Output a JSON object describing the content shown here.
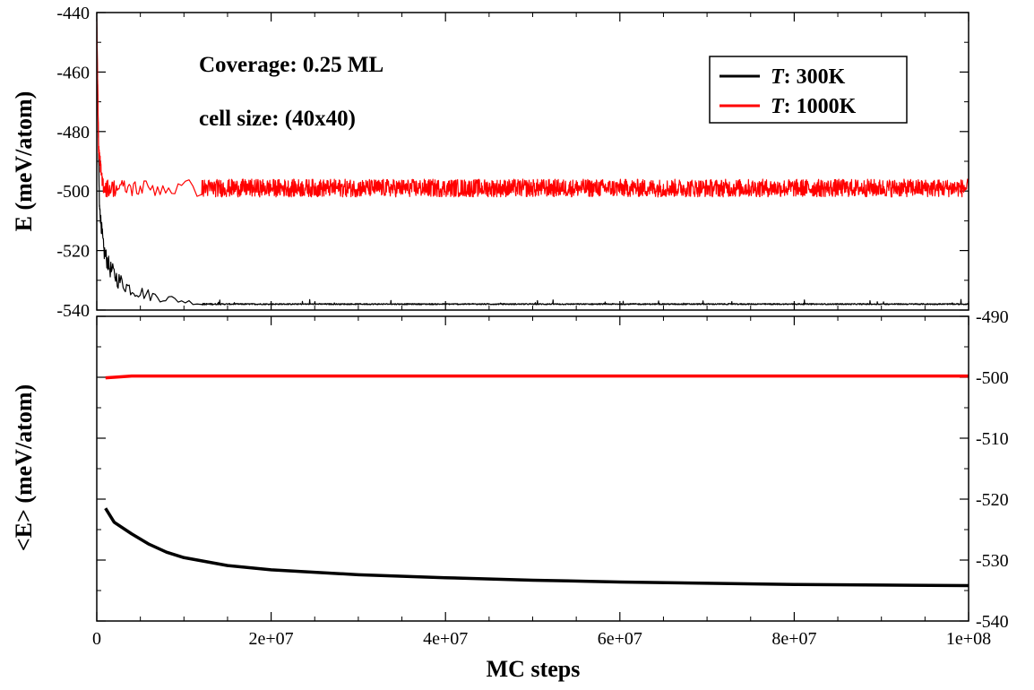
{
  "chart_data": [
    {
      "type": "line",
      "panel": "top",
      "ylabel": "E (meV/atom)",
      "xlabel": "",
      "xlim": [
        0,
        100000000
      ],
      "ylim": [
        -540,
        -440
      ],
      "x_ticks": [
        0,
        20000000,
        40000000,
        60000000,
        80000000,
        100000000
      ],
      "y_ticks": [
        -540,
        -520,
        -500,
        -480,
        -460,
        -440
      ],
      "y_tick_labels": [
        "-540",
        "-520",
        "-500",
        "-480",
        "-460",
        "-440"
      ],
      "annotations": [
        "Coverage: 0.25 ML",
        "cell size: (40x40)"
      ],
      "legend": {
        "placement": "top-right",
        "entries": [
          {
            "prefix": "T",
            "suffix": ": 300K",
            "color": "#000000"
          },
          {
            "prefix": "T",
            "suffix": ": 1000K",
            "color": "#ff0000"
          }
        ]
      },
      "series": [
        {
          "name": "T: 300K",
          "color": "#000000",
          "x": [
            0,
            300000,
            800000,
            1500000,
            2500000,
            4000000,
            6000000,
            8000000,
            10000000,
            12000000,
            15000000,
            30000000,
            50000000,
            70000000,
            90000000,
            100000000
          ],
          "y": [
            -443,
            -505,
            -520,
            -526,
            -530,
            -533,
            -535,
            -536,
            -537,
            -538,
            -538,
            -538,
            -538,
            -538,
            -538,
            -538
          ],
          "noise_amplitude": [
            0,
            2,
            3,
            3,
            3,
            2.5,
            2,
            1.5,
            1,
            0.3,
            0.2,
            0.2,
            0.2,
            0.2,
            0.2,
            0.2
          ]
        },
        {
          "name": "T: 1000K",
          "color": "#ff0000",
          "x": [
            0,
            200000,
            600000,
            1000000,
            100000000
          ],
          "y": [
            -442,
            -485,
            -497,
            -499,
            -499
          ],
          "noise_amplitude": [
            0,
            2,
            3,
            3,
            3
          ]
        }
      ]
    },
    {
      "type": "line",
      "panel": "bottom",
      "ylabel": "<E> (meV/atom)",
      "xlabel": "MC steps",
      "xlim": [
        0,
        100000000
      ],
      "ylim": [
        -540,
        -490
      ],
      "x_ticks": [
        0,
        20000000,
        40000000,
        60000000,
        80000000,
        100000000
      ],
      "x_tick_labels": [
        "0",
        "2e+07",
        "4e+07",
        "6e+07",
        "8e+07",
        "1e+08"
      ],
      "y_ticks": [
        -540,
        -530,
        -520,
        -510,
        -500,
        -490
      ],
      "y_tick_labels": [
        "-540",
        "-530",
        "-520",
        "-510",
        "-500",
        "-490"
      ],
      "series": [
        {
          "name": "T: 300K",
          "color": "#000000",
          "x": [
            1000000,
            2000000,
            4000000,
            6000000,
            8000000,
            10000000,
            15000000,
            20000000,
            30000000,
            40000000,
            50000000,
            60000000,
            70000000,
            80000000,
            90000000,
            100000000
          ],
          "y": [
            -521.5,
            -523.8,
            -525.7,
            -527.4,
            -528.7,
            -529.6,
            -530.9,
            -531.6,
            -532.4,
            -532.9,
            -533.3,
            -533.6,
            -533.8,
            -534.0,
            -534.1,
            -534.2
          ]
        },
        {
          "name": "T: 1000K",
          "color": "#ff0000",
          "x": [
            1000000,
            2000000,
            4000000,
            10000000,
            30000000,
            60000000,
            100000000
          ],
          "y": [
            -500.1,
            -500.0,
            -499.8,
            -499.8,
            -499.8,
            -499.8,
            -499.8
          ]
        }
      ]
    }
  ]
}
